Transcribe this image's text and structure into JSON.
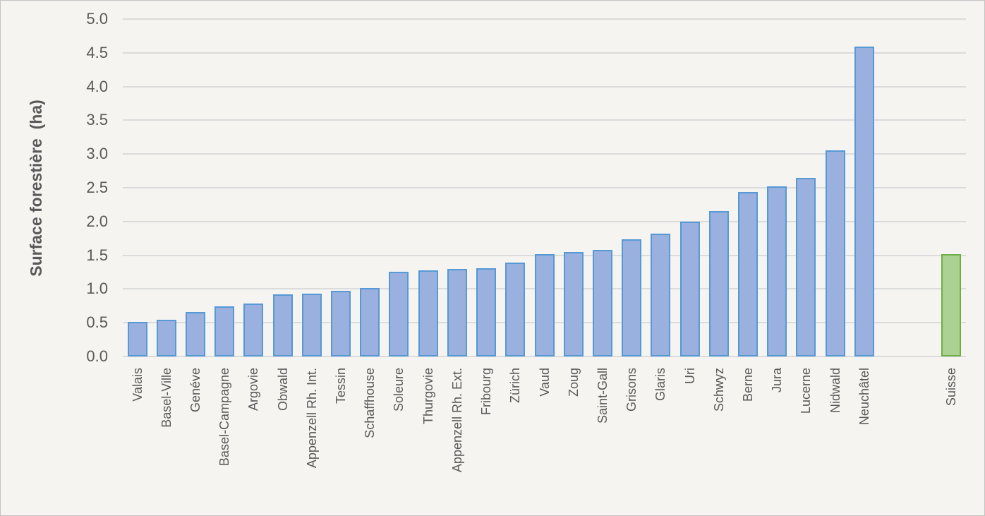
{
  "chart_data": {
    "type": "bar",
    "title": "",
    "xlabel": "",
    "ylabel": "Surface forestière  (ha)",
    "ylim": [
      0,
      5.0
    ],
    "ytick_step": 0.5,
    "grid": true,
    "legend": "none",
    "categories": [
      "Valais",
      "Basel-Ville",
      "Genéve",
      "Basel-Campagne",
      "Argovie",
      "Obwald",
      "Appenzell Rh. Int.",
      "Tessin",
      "Schaffhouse",
      "Soleure",
      "Thurgovie",
      "Appenzell Rh. Ext.",
      "Fribourg",
      "Zürich",
      "Vaud",
      "Zoug",
      "Saint-Gall",
      "Grisons",
      "Glaris",
      "Uri",
      "Schwyz",
      "Berne",
      "Jura",
      "Lucerne",
      "Nidwald",
      "Neuchâtel",
      "Suisse"
    ],
    "values": [
      0.51,
      0.54,
      0.66,
      0.74,
      0.78,
      0.92,
      0.93,
      0.97,
      1.01,
      1.26,
      1.28,
      1.3,
      1.31,
      1.39,
      1.52,
      1.55,
      1.58,
      1.74,
      1.82,
      2.0,
      2.16,
      2.44,
      2.52,
      2.65,
      3.05,
      4.59,
      1.52
    ],
    "highlight_category": "Suisse",
    "gap_slots_before_highlight": 2,
    "colors": {
      "canton_fill": "#9ab0de",
      "canton_border": "#5599d5",
      "suisse_fill": "#acd293",
      "suisse_border": "#6fad47",
      "gridline": "#dbdbdb",
      "text": "#595959",
      "background": "#f5f4f1"
    }
  }
}
